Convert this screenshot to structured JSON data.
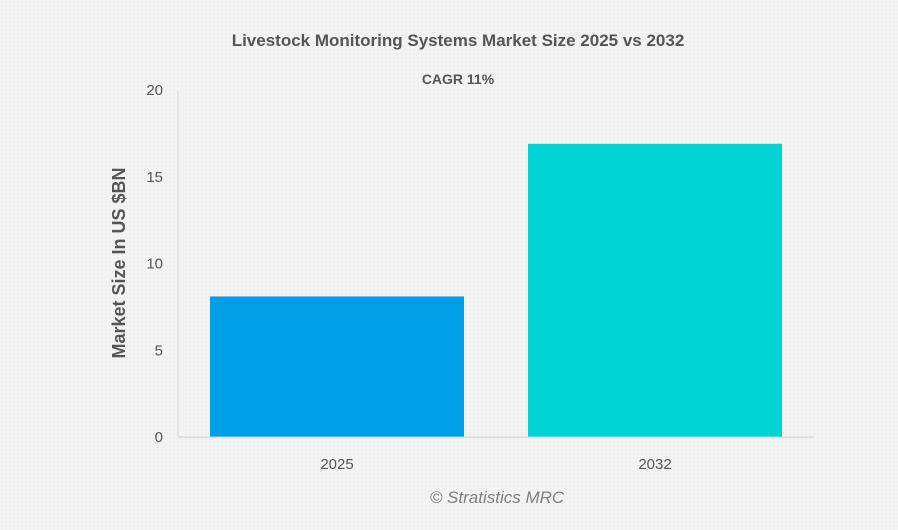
{
  "chart_data": {
    "type": "bar",
    "title": "Livestock Monitoring Systems Market Size 2025 vs 2032",
    "subtitle": "CAGR 11%",
    "xlabel": "",
    "ylabel": "Market Size In US $BN",
    "categories": [
      "2025",
      "2032"
    ],
    "values": [
      8.1,
      16.9
    ],
    "ylim": [
      0,
      20
    ],
    "yticks": [
      0,
      5,
      10,
      15,
      20
    ],
    "bar_colors": [
      "#00a0e9",
      "#00d4d4"
    ],
    "grid": false,
    "legend": "none"
  },
  "credit": "© Stratistics MRC"
}
